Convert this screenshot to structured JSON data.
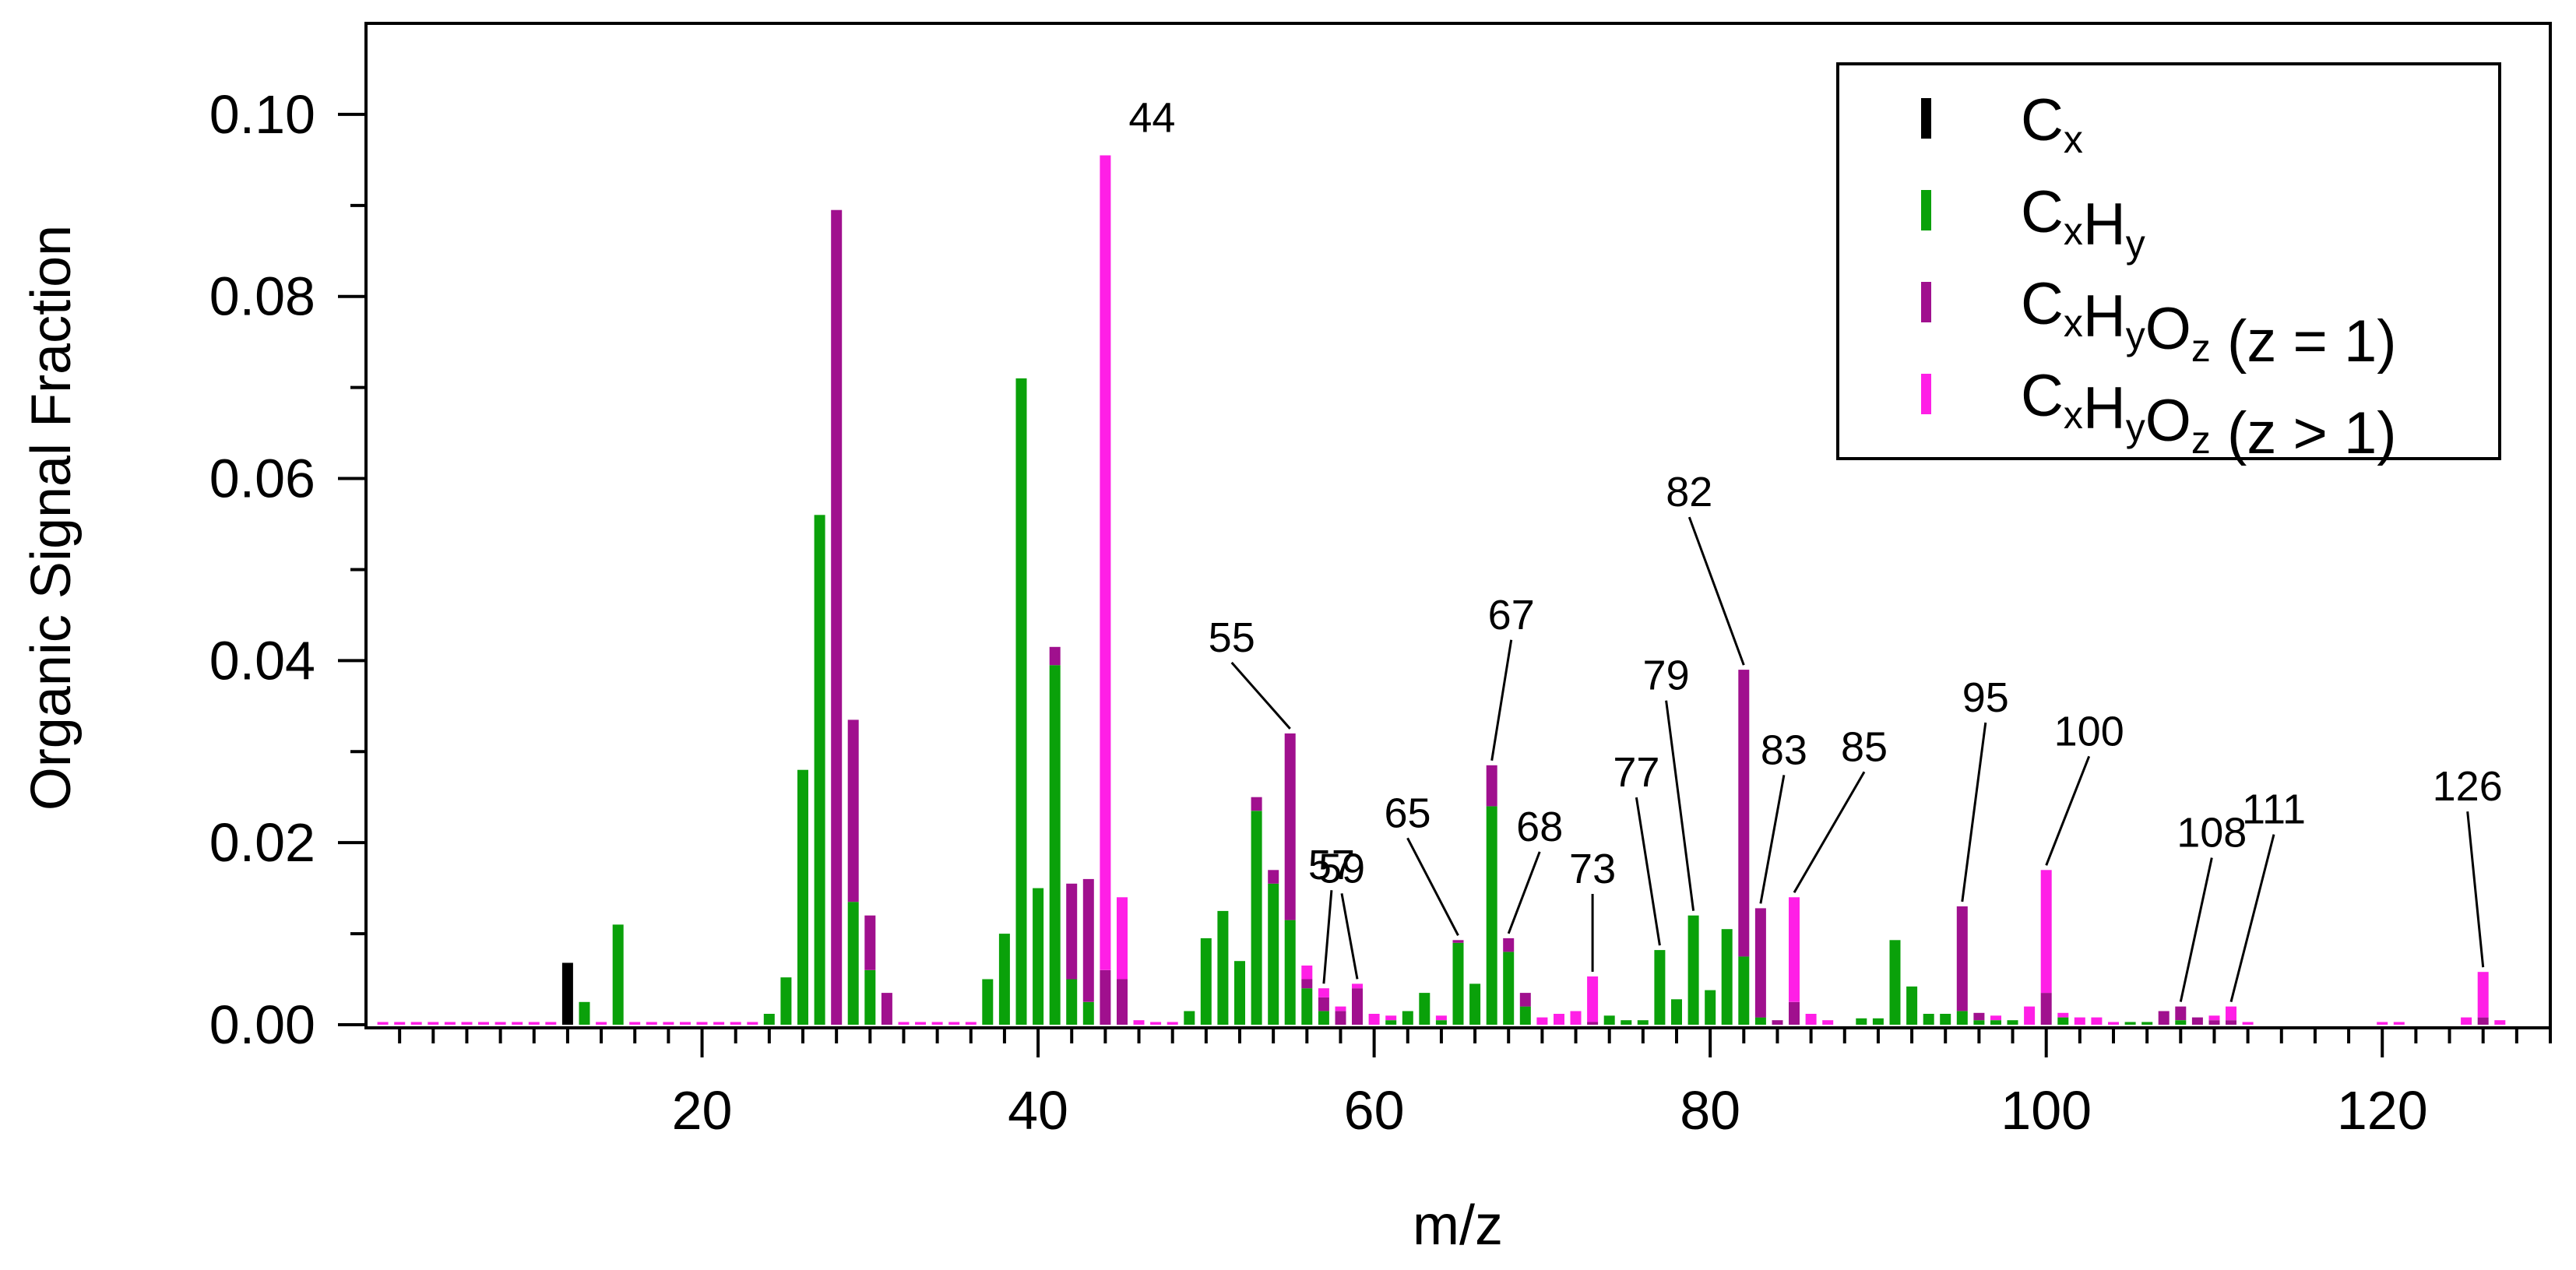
{
  "chart_data": {
    "type": "bar",
    "stacked": true,
    "xlabel": "m/z",
    "ylabel": "Organic Signal Fraction",
    "xlim": [
      0,
      130
    ],
    "ylim": [
      0,
      0.11
    ],
    "x_ticks": [
      20,
      40,
      60,
      80,
      100,
      120
    ],
    "x_tick_labels": [
      "20",
      "40",
      "60",
      "80",
      "100",
      "120"
    ],
    "y_ticks": [
      0,
      0.02,
      0.04,
      0.06,
      0.08,
      0.1
    ],
    "y_tick_labels": [
      "0.00",
      "0.02",
      "0.04",
      "0.06",
      "0.08",
      "0.10"
    ],
    "legend_position": "top-right",
    "series": [
      {
        "name": "Cx",
        "label_parts": [
          [
            "C",
            ""
          ],
          [
            "x",
            "sub"
          ]
        ],
        "color": "#000000",
        "points": [
          [
            12,
            0.0068
          ]
        ]
      },
      {
        "name": "CxHy",
        "label_parts": [
          [
            "C",
            ""
          ],
          [
            "x",
            "sub"
          ],
          [
            "H",
            ""
          ],
          [
            "y",
            "sub"
          ]
        ],
        "color": "#0aa10a",
        "points": [
          [
            13,
            0.0025
          ],
          [
            15,
            0.011
          ],
          [
            24,
            0.0012
          ],
          [
            25,
            0.0052
          ],
          [
            26,
            0.028
          ],
          [
            27,
            0.056
          ],
          [
            29,
            0.0135
          ],
          [
            30,
            0.006
          ],
          [
            37,
            0.005
          ],
          [
            38,
            0.01
          ],
          [
            39,
            0.071
          ],
          [
            40,
            0.015
          ],
          [
            41,
            0.0395
          ],
          [
            42,
            0.005
          ],
          [
            43,
            0.0025
          ],
          [
            49,
            0.0015
          ],
          [
            50,
            0.0095
          ],
          [
            51,
            0.0125
          ],
          [
            52,
            0.007
          ],
          [
            53,
            0.0235
          ],
          [
            54,
            0.0155
          ],
          [
            55,
            0.0115
          ],
          [
            56,
            0.004
          ],
          [
            57,
            0.0015
          ],
          [
            61,
            0.0005
          ],
          [
            62,
            0.0015
          ],
          [
            63,
            0.0035
          ],
          [
            64,
            0.0005
          ],
          [
            65,
            0.009
          ],
          [
            66,
            0.0045
          ],
          [
            67,
            0.024
          ],
          [
            68,
            0.008
          ],
          [
            69,
            0.002
          ],
          [
            74,
            0.001
          ],
          [
            75,
            0.0005
          ],
          [
            76,
            0.0005
          ],
          [
            77,
            0.0082
          ],
          [
            78,
            0.0028
          ],
          [
            79,
            0.012
          ],
          [
            80,
            0.0038
          ],
          [
            81,
            0.0105
          ],
          [
            82,
            0.0075
          ],
          [
            83,
            0.0008
          ],
          [
            89,
            0.0007
          ],
          [
            90,
            0.0007
          ],
          [
            91,
            0.0093
          ],
          [
            92,
            0.0042
          ],
          [
            93,
            0.0012
          ],
          [
            94,
            0.0012
          ],
          [
            95,
            0.0015
          ],
          [
            96,
            0.0005
          ],
          [
            97,
            0.0005
          ],
          [
            98,
            0.0005
          ],
          [
            101,
            0.0008
          ],
          [
            105,
            0.0003
          ],
          [
            106,
            0.0003
          ],
          [
            108,
            0.0005
          ]
        ]
      },
      {
        "name": "CxHyOz (z = 1)",
        "label_parts": [
          [
            "C",
            ""
          ],
          [
            "x",
            "sub"
          ],
          [
            "H",
            ""
          ],
          [
            "y",
            "sub"
          ],
          [
            "O",
            ""
          ],
          [
            "z",
            "sub"
          ],
          [
            " (z = 1)",
            ""
          ]
        ],
        "color": "#a0108e",
        "points": [
          [
            28,
            0.0895
          ],
          [
            29,
            0.02
          ],
          [
            30,
            0.006
          ],
          [
            31,
            0.0035
          ],
          [
            41,
            0.002
          ],
          [
            42,
            0.0105
          ],
          [
            43,
            0.0135
          ],
          [
            44,
            0.006
          ],
          [
            45,
            0.005
          ],
          [
            53,
            0.0015
          ],
          [
            54,
            0.0015
          ],
          [
            55,
            0.0205
          ],
          [
            56,
            0.001
          ],
          [
            57,
            0.0015
          ],
          [
            58,
            0.0015
          ],
          [
            59,
            0.004
          ],
          [
            65,
            0.0003
          ],
          [
            67,
            0.0045
          ],
          [
            68,
            0.0015
          ],
          [
            69,
            0.0015
          ],
          [
            73,
            0.0003
          ],
          [
            82,
            0.0315
          ],
          [
            83,
            0.012
          ],
          [
            84,
            0.0005
          ],
          [
            85,
            0.0025
          ],
          [
            95,
            0.0115
          ],
          [
            96,
            0.0008
          ],
          [
            100,
            0.0035
          ],
          [
            107,
            0.0015
          ],
          [
            108,
            0.0015
          ],
          [
            109,
            0.0008
          ],
          [
            110,
            0.0005
          ],
          [
            111,
            0.0005
          ],
          [
            126,
            0.0008
          ]
        ]
      },
      {
        "name": "CxHyOz (z > 1)",
        "label_parts": [
          [
            "C",
            ""
          ],
          [
            "x",
            "sub"
          ],
          [
            "H",
            ""
          ],
          [
            "y",
            "sub"
          ],
          [
            "O",
            ""
          ],
          [
            "z",
            "sub"
          ],
          [
            " (z > 1)",
            ""
          ]
        ],
        "color": "#ff1fe6",
        "points": [
          [
            1,
            0.0003
          ],
          [
            2,
            0.0003
          ],
          [
            3,
            0.0003
          ],
          [
            4,
            0.0003
          ],
          [
            5,
            0.0003
          ],
          [
            6,
            0.0003
          ],
          [
            7,
            0.0003
          ],
          [
            8,
            0.0003
          ],
          [
            9,
            0.0003
          ],
          [
            10,
            0.0003
          ],
          [
            11,
            0.0003
          ],
          [
            14,
            0.0003
          ],
          [
            16,
            0.0003
          ],
          [
            17,
            0.0003
          ],
          [
            18,
            0.0003
          ],
          [
            19,
            0.0003
          ],
          [
            20,
            0.0003
          ],
          [
            21,
            0.0003
          ],
          [
            22,
            0.0003
          ],
          [
            23,
            0.0003
          ],
          [
            32,
            0.0003
          ],
          [
            33,
            0.0003
          ],
          [
            34,
            0.0003
          ],
          [
            35,
            0.0003
          ],
          [
            36,
            0.0003
          ],
          [
            44,
            0.0895
          ],
          [
            45,
            0.009
          ],
          [
            46,
            0.0005
          ],
          [
            47,
            0.0003
          ],
          [
            48,
            0.0003
          ],
          [
            56,
            0.0015
          ],
          [
            57,
            0.001
          ],
          [
            58,
            0.0005
          ],
          [
            59,
            0.0005
          ],
          [
            60,
            0.0012
          ],
          [
            61,
            0.0005
          ],
          [
            64,
            0.0005
          ],
          [
            70,
            0.0008
          ],
          [
            71,
            0.0012
          ],
          [
            72,
            0.0015
          ],
          [
            73,
            0.005
          ],
          [
            85,
            0.0115
          ],
          [
            86,
            0.0012
          ],
          [
            87,
            0.0005
          ],
          [
            97,
            0.0005
          ],
          [
            99,
            0.002
          ],
          [
            100,
            0.0135
          ],
          [
            101,
            0.0005
          ],
          [
            102,
            0.0008
          ],
          [
            103,
            0.0008
          ],
          [
            104,
            0.0003
          ],
          [
            110,
            0.0005
          ],
          [
            111,
            0.0015
          ],
          [
            112,
            0.0003
          ],
          [
            120,
            0.0003
          ],
          [
            121,
            0.0003
          ],
          [
            125,
            0.0008
          ],
          [
            126,
            0.005
          ],
          [
            127,
            0.0005
          ]
        ]
      }
    ],
    "annotations": [
      {
        "text": "44",
        "mz": 44,
        "leader": false
      },
      {
        "text": "55",
        "mz": 55,
        "leader": true
      },
      {
        "text": "57",
        "mz": 57,
        "leader": true
      },
      {
        "text": "59",
        "mz": 59,
        "leader": true
      },
      {
        "text": "65",
        "mz": 65,
        "leader": true
      },
      {
        "text": "67",
        "mz": 67,
        "leader": true
      },
      {
        "text": "68",
        "mz": 68,
        "leader": true
      },
      {
        "text": "73",
        "mz": 73,
        "leader": true
      },
      {
        "text": "77",
        "mz": 77,
        "leader": true
      },
      {
        "text": "79",
        "mz": 79,
        "leader": true
      },
      {
        "text": "82",
        "mz": 82,
        "leader": true
      },
      {
        "text": "83",
        "mz": 83,
        "leader": true
      },
      {
        "text": "85",
        "mz": 85,
        "leader": true
      },
      {
        "text": "95",
        "mz": 95,
        "leader": true
      },
      {
        "text": "100",
        "mz": 100,
        "leader": true
      },
      {
        "text": "108",
        "mz": 108,
        "leader": true
      },
      {
        "text": "111",
        "mz": 111,
        "leader": true
      },
      {
        "text": "126",
        "mz": 126,
        "leader": true
      }
    ]
  }
}
